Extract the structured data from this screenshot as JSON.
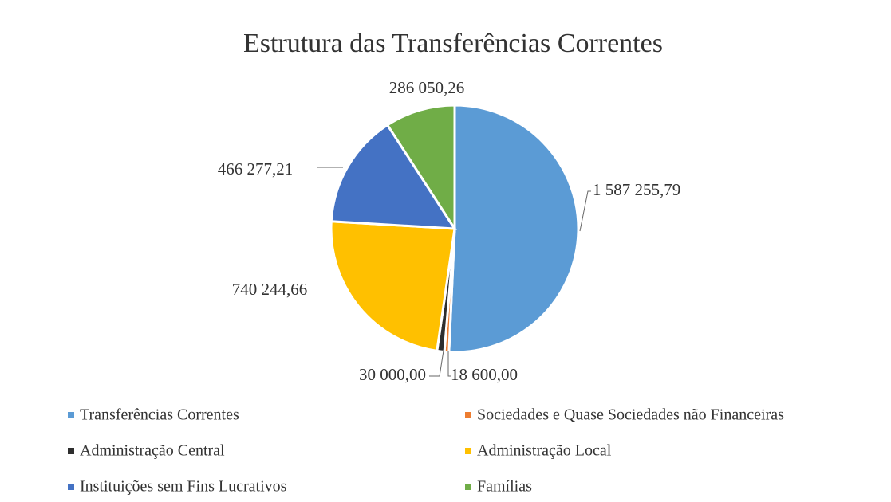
{
  "chart_data": {
    "type": "pie",
    "title": "Estrutura das Transferências Correntes",
    "categories": [
      "Transferências Correntes",
      "Sociedades e Quase Sociedades não Financeiras",
      "Administração Central",
      "Administração Local",
      "Instituições sem Fins Lucrativos",
      "Famílias"
    ],
    "values": [
      1587255.79,
      18600.0,
      30000.0,
      740244.66,
      466277.21,
      286050.26
    ],
    "value_labels": [
      "1 587 255,79",
      "18 600,00",
      "30 000,00",
      "740 244,66",
      "466 277,21",
      "286 050,26"
    ],
    "colors": [
      "#5b9bd5",
      "#ed7d31",
      "#2e2e2e",
      "#ffc000",
      "#4472c4",
      "#70ad47"
    ],
    "legend": "bottom"
  }
}
